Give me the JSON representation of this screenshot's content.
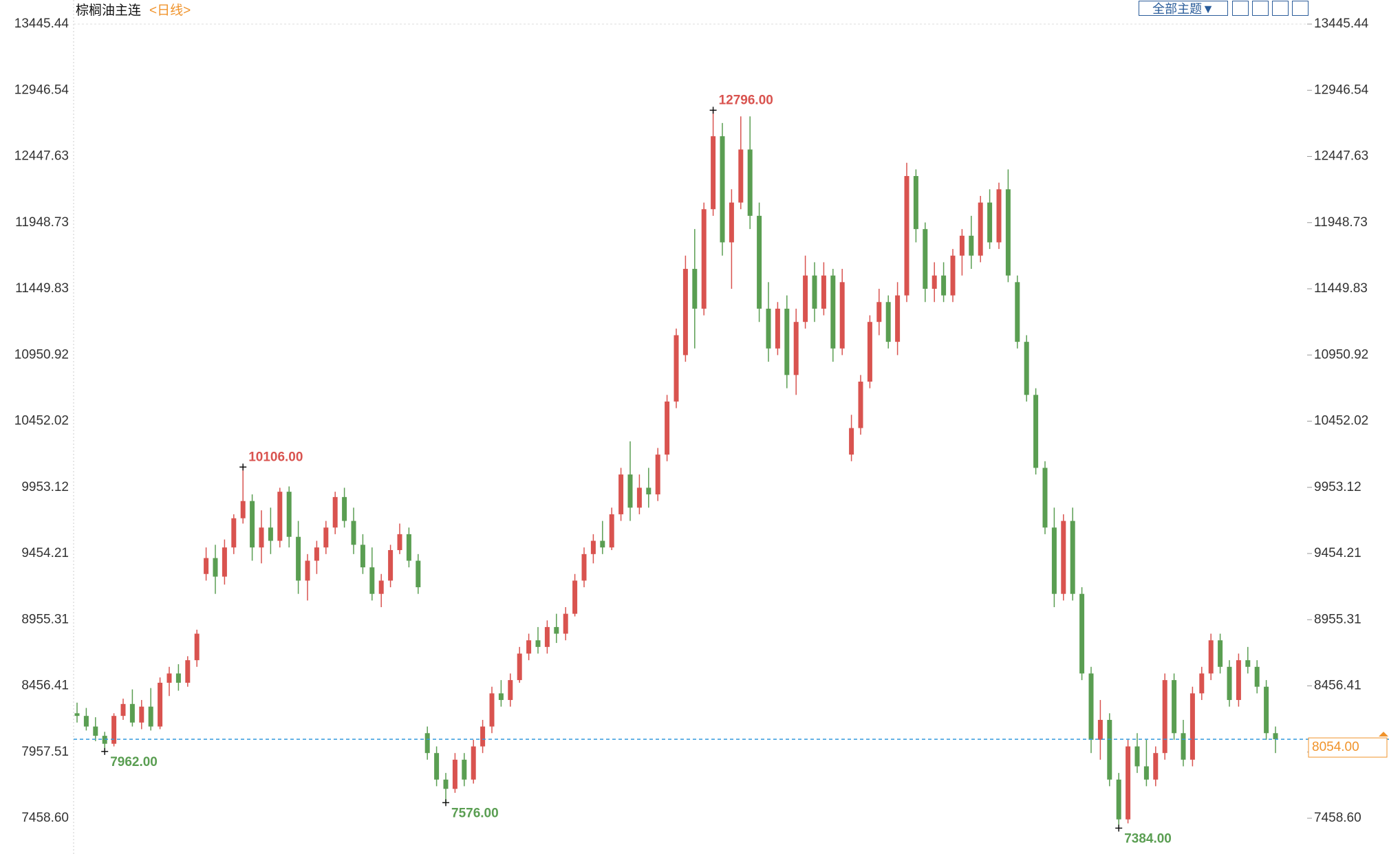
{
  "chart_data": {
    "type": "candlestick",
    "title": "棕榈油主连",
    "interval": "<日线>",
    "toolbar": "全部主题▼",
    "up_color": "#d9534f",
    "down_color": "#5a9e52",
    "last_color": "#f0932b",
    "line_color": "#3399dd",
    "ylim": [
      7189,
      13627
    ],
    "yticks": [
      13445.44,
      12946.54,
      12447.63,
      11948.73,
      11449.83,
      10950.92,
      10452.02,
      9953.12,
      9454.21,
      8955.31,
      8456.41,
      7957.51,
      {
        "value": 7458.6,
        "label": "7458.60"
      }
    ],
    "annotations": [
      {
        "value": 10106,
        "label": "10106.00"
      },
      {
        "value": 12796,
        "label": "12796.00"
      },
      {
        "value": 7962,
        "label": "7962.00"
      },
      {
        "value": 7576,
        "label": "7576.00"
      },
      {
        "value": 7384,
        "label": "7384.00"
      }
    ],
    "last": {
      "value": 8054,
      "label": "8054.00"
    },
    "candles": [
      [
        8250,
        8330,
        8180,
        8230
      ],
      [
        8230,
        8290,
        8120,
        8150
      ],
      [
        8150,
        8220,
        8040,
        8080
      ],
      [
        8080,
        8110,
        7962,
        8020
      ],
      [
        8020,
        8250,
        8000,
        8230
      ],
      [
        8230,
        8360,
        8200,
        8320
      ],
      [
        8320,
        8430,
        8150,
        8180
      ],
      [
        8180,
        8350,
        8130,
        8300
      ],
      [
        8300,
        8440,
        8120,
        8150
      ],
      [
        8150,
        8520,
        8130,
        8480
      ],
      [
        8480,
        8600,
        8380,
        8550
      ],
      [
        8550,
        8620,
        8420,
        8480
      ],
      [
        8480,
        8680,
        8450,
        8650
      ],
      [
        8650,
        8880,
        8600,
        8850
      ],
      [
        9300,
        9500,
        9250,
        9420
      ],
      [
        9420,
        9520,
        9150,
        9280
      ],
      [
        9280,
        9560,
        9220,
        9500
      ],
      [
        9500,
        9750,
        9450,
        9720
      ],
      [
        9720,
        10106,
        9680,
        9850
      ],
      [
        9850,
        9900,
        9400,
        9500
      ],
      [
        9500,
        9780,
        9380,
        9650
      ],
      [
        9650,
        9800,
        9450,
        9550
      ],
      [
        9550,
        9950,
        9500,
        9920
      ],
      [
        9920,
        9960,
        9500,
        9580
      ],
      [
        9580,
        9700,
        9150,
        9250
      ],
      [
        9250,
        9450,
        9100,
        9400
      ],
      [
        9400,
        9550,
        9300,
        9500
      ],
      [
        9500,
        9700,
        9450,
        9650
      ],
      [
        9650,
        9920,
        9600,
        9880
      ],
      [
        9880,
        9950,
        9650,
        9700
      ],
      [
        9700,
        9800,
        9450,
        9520
      ],
      [
        9520,
        9600,
        9300,
        9350
      ],
      [
        9350,
        9500,
        9100,
        9150
      ],
      [
        9150,
        9300,
        9050,
        9250
      ],
      [
        9250,
        9520,
        9200,
        9480
      ],
      [
        9480,
        9680,
        9450,
        9600
      ],
      [
        9600,
        9650,
        9350,
        9400
      ],
      [
        9400,
        9450,
        9150,
        9200
      ],
      [
        8100,
        8150,
        7900,
        7950
      ],
      [
        7950,
        8000,
        7700,
        7750
      ],
      [
        7750,
        7800,
        7576,
        7680
      ],
      [
        7680,
        7950,
        7650,
        7900
      ],
      [
        7900,
        7950,
        7700,
        7750
      ],
      [
        7750,
        8050,
        7720,
        8000
      ],
      [
        8000,
        8200,
        7950,
        8150
      ],
      [
        8150,
        8450,
        8100,
        8400
      ],
      [
        8400,
        8500,
        8300,
        8350
      ],
      [
        8350,
        8550,
        8300,
        8500
      ],
      [
        8500,
        8750,
        8480,
        8700
      ],
      [
        8700,
        8850,
        8650,
        8800
      ],
      [
        8800,
        8900,
        8700,
        8750
      ],
      [
        8750,
        8950,
        8700,
        8900
      ],
      [
        8900,
        9000,
        8780,
        8850
      ],
      [
        8850,
        9050,
        8800,
        9000
      ],
      [
        9000,
        9300,
        8980,
        9250
      ],
      [
        9250,
        9500,
        9200,
        9450
      ],
      [
        9450,
        9600,
        9380,
        9550
      ],
      [
        9550,
        9700,
        9450,
        9500
      ],
      [
        9500,
        9800,
        9480,
        9750
      ],
      [
        9750,
        10100,
        9700,
        10050
      ],
      [
        10050,
        10300,
        9700,
        9800
      ],
      [
        9800,
        10050,
        9750,
        9950
      ],
      [
        9950,
        10100,
        9800,
        9900
      ],
      [
        9900,
        10250,
        9850,
        10200
      ],
      [
        10200,
        10650,
        10150,
        10600
      ],
      [
        10600,
        11150,
        10550,
        11100
      ],
      [
        10950,
        11700,
        10900,
        11600
      ],
      [
        11600,
        11900,
        11000,
        11300
      ],
      [
        11300,
        12100,
        11250,
        12050
      ],
      [
        12050,
        12796,
        12000,
        12600
      ],
      [
        12600,
        12700,
        11700,
        11800
      ],
      [
        11800,
        12200,
        11450,
        12100
      ],
      [
        12100,
        12750,
        12050,
        12500
      ],
      [
        12500,
        12750,
        11900,
        12000
      ],
      [
        12000,
        12100,
        11200,
        11300
      ],
      [
        11300,
        11500,
        10900,
        11000
      ],
      [
        11000,
        11350,
        10950,
        11300
      ],
      [
        11300,
        11400,
        10700,
        10800
      ],
      [
        10800,
        11300,
        10650,
        11200
      ],
      [
        11200,
        11700,
        11150,
        11550
      ],
      [
        11550,
        11650,
        11200,
        11300
      ],
      [
        11300,
        11650,
        11250,
        11550
      ],
      [
        11550,
        11600,
        10900,
        11000
      ],
      [
        11000,
        11600,
        10950,
        11500
      ],
      [
        10200,
        10500,
        10150,
        10400
      ],
      [
        10400,
        10800,
        10350,
        10750
      ],
      [
        10750,
        11250,
        10700,
        11200
      ],
      [
        11200,
        11450,
        11100,
        11350
      ],
      [
        11350,
        11400,
        11000,
        11050
      ],
      [
        11050,
        11500,
        10950,
        11400
      ],
      [
        11400,
        12400,
        11350,
        12300
      ],
      [
        12300,
        12350,
        11800,
        11900
      ],
      [
        11900,
        11950,
        11350,
        11450
      ],
      [
        11450,
        11650,
        11350,
        11550
      ],
      [
        11550,
        11650,
        11350,
        11400
      ],
      [
        11400,
        11750,
        11350,
        11700
      ],
      [
        11700,
        11900,
        11550,
        11850
      ],
      [
        11850,
        12000,
        11600,
        11700
      ],
      [
        11700,
        12150,
        11650,
        12100
      ],
      [
        12100,
        12200,
        11750,
        11800
      ],
      [
        11800,
        12250,
        11750,
        12200
      ],
      [
        12200,
        12350,
        11500,
        11550
      ],
      [
        11500,
        11550,
        11000,
        11050
      ],
      [
        11050,
        11100,
        10600,
        10650
      ],
      [
        10650,
        10700,
        10050,
        10100
      ],
      [
        10100,
        10150,
        9600,
        9650
      ],
      [
        9650,
        9800,
        9050,
        9150
      ],
      [
        9150,
        9750,
        9100,
        9700
      ],
      [
        9700,
        9800,
        9100,
        9150
      ],
      [
        9150,
        9200,
        8500,
        8550
      ],
      [
        8550,
        8600,
        7950,
        8050
      ],
      [
        8050,
        8350,
        7900,
        8200
      ],
      [
        8200,
        8250,
        7700,
        7750
      ],
      [
        7750,
        7800,
        7384,
        7450
      ],
      [
        7450,
        8050,
        7420,
        8000
      ],
      [
        8000,
        8100,
        7800,
        7850
      ],
      [
        7850,
        8050,
        7700,
        7750
      ],
      [
        7750,
        8000,
        7700,
        7950
      ],
      [
        7950,
        8550,
        7900,
        8500
      ],
      [
        8500,
        8550,
        8050,
        8100
      ],
      [
        8100,
        8200,
        7850,
        7900
      ],
      [
        7900,
        8450,
        7850,
        8400
      ],
      [
        8400,
        8600,
        8350,
        8550
      ],
      [
        8550,
        8850,
        8500,
        8800
      ],
      [
        8800,
        8850,
        8550,
        8600
      ],
      [
        8600,
        8650,
        8300,
        8350
      ],
      [
        8350,
        8700,
        8300,
        8650
      ],
      [
        8650,
        8750,
        8550,
        8600
      ],
      [
        8600,
        8650,
        8400,
        8450
      ],
      [
        8450,
        8500,
        8050,
        8100
      ],
      [
        8100,
        8150,
        7950,
        8054
      ]
    ]
  }
}
